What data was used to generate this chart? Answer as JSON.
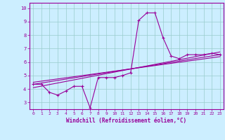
{
  "xlabel": "Windchill (Refroidissement éolien,°C)",
  "background_color": "#cceeff",
  "grid_color": "#99cccc",
  "line_color": "#990099",
  "x_ticks": [
    0,
    1,
    2,
    3,
    4,
    5,
    6,
    7,
    8,
    9,
    10,
    11,
    12,
    13,
    14,
    15,
    16,
    17,
    18,
    19,
    20,
    21,
    22,
    23
  ],
  "y_ticks": [
    3,
    4,
    5,
    6,
    7,
    8,
    9,
    10
  ],
  "ylim": [
    2.5,
    10.4
  ],
  "xlim": [
    -0.5,
    23.5
  ],
  "line1_x": [
    0,
    1,
    2,
    3,
    4,
    5,
    6,
    7,
    8,
    9,
    10,
    11,
    12,
    13,
    14,
    15,
    16,
    17,
    18,
    19,
    20,
    21,
    22,
    23
  ],
  "line1_y": [
    4.35,
    4.35,
    3.75,
    3.55,
    3.85,
    4.2,
    4.2,
    2.6,
    4.85,
    4.85,
    4.85,
    5.0,
    5.2,
    9.1,
    9.65,
    9.65,
    7.8,
    6.45,
    6.25,
    6.55,
    6.55,
    6.55,
    6.65,
    6.55
  ],
  "line2_x": [
    0,
    23
  ],
  "line2_y": [
    4.35,
    6.55
  ],
  "line3_x": [
    0,
    23
  ],
  "line3_y": [
    4.1,
    6.75
  ],
  "line4_x": [
    0,
    23
  ],
  "line4_y": [
    4.5,
    6.4
  ]
}
